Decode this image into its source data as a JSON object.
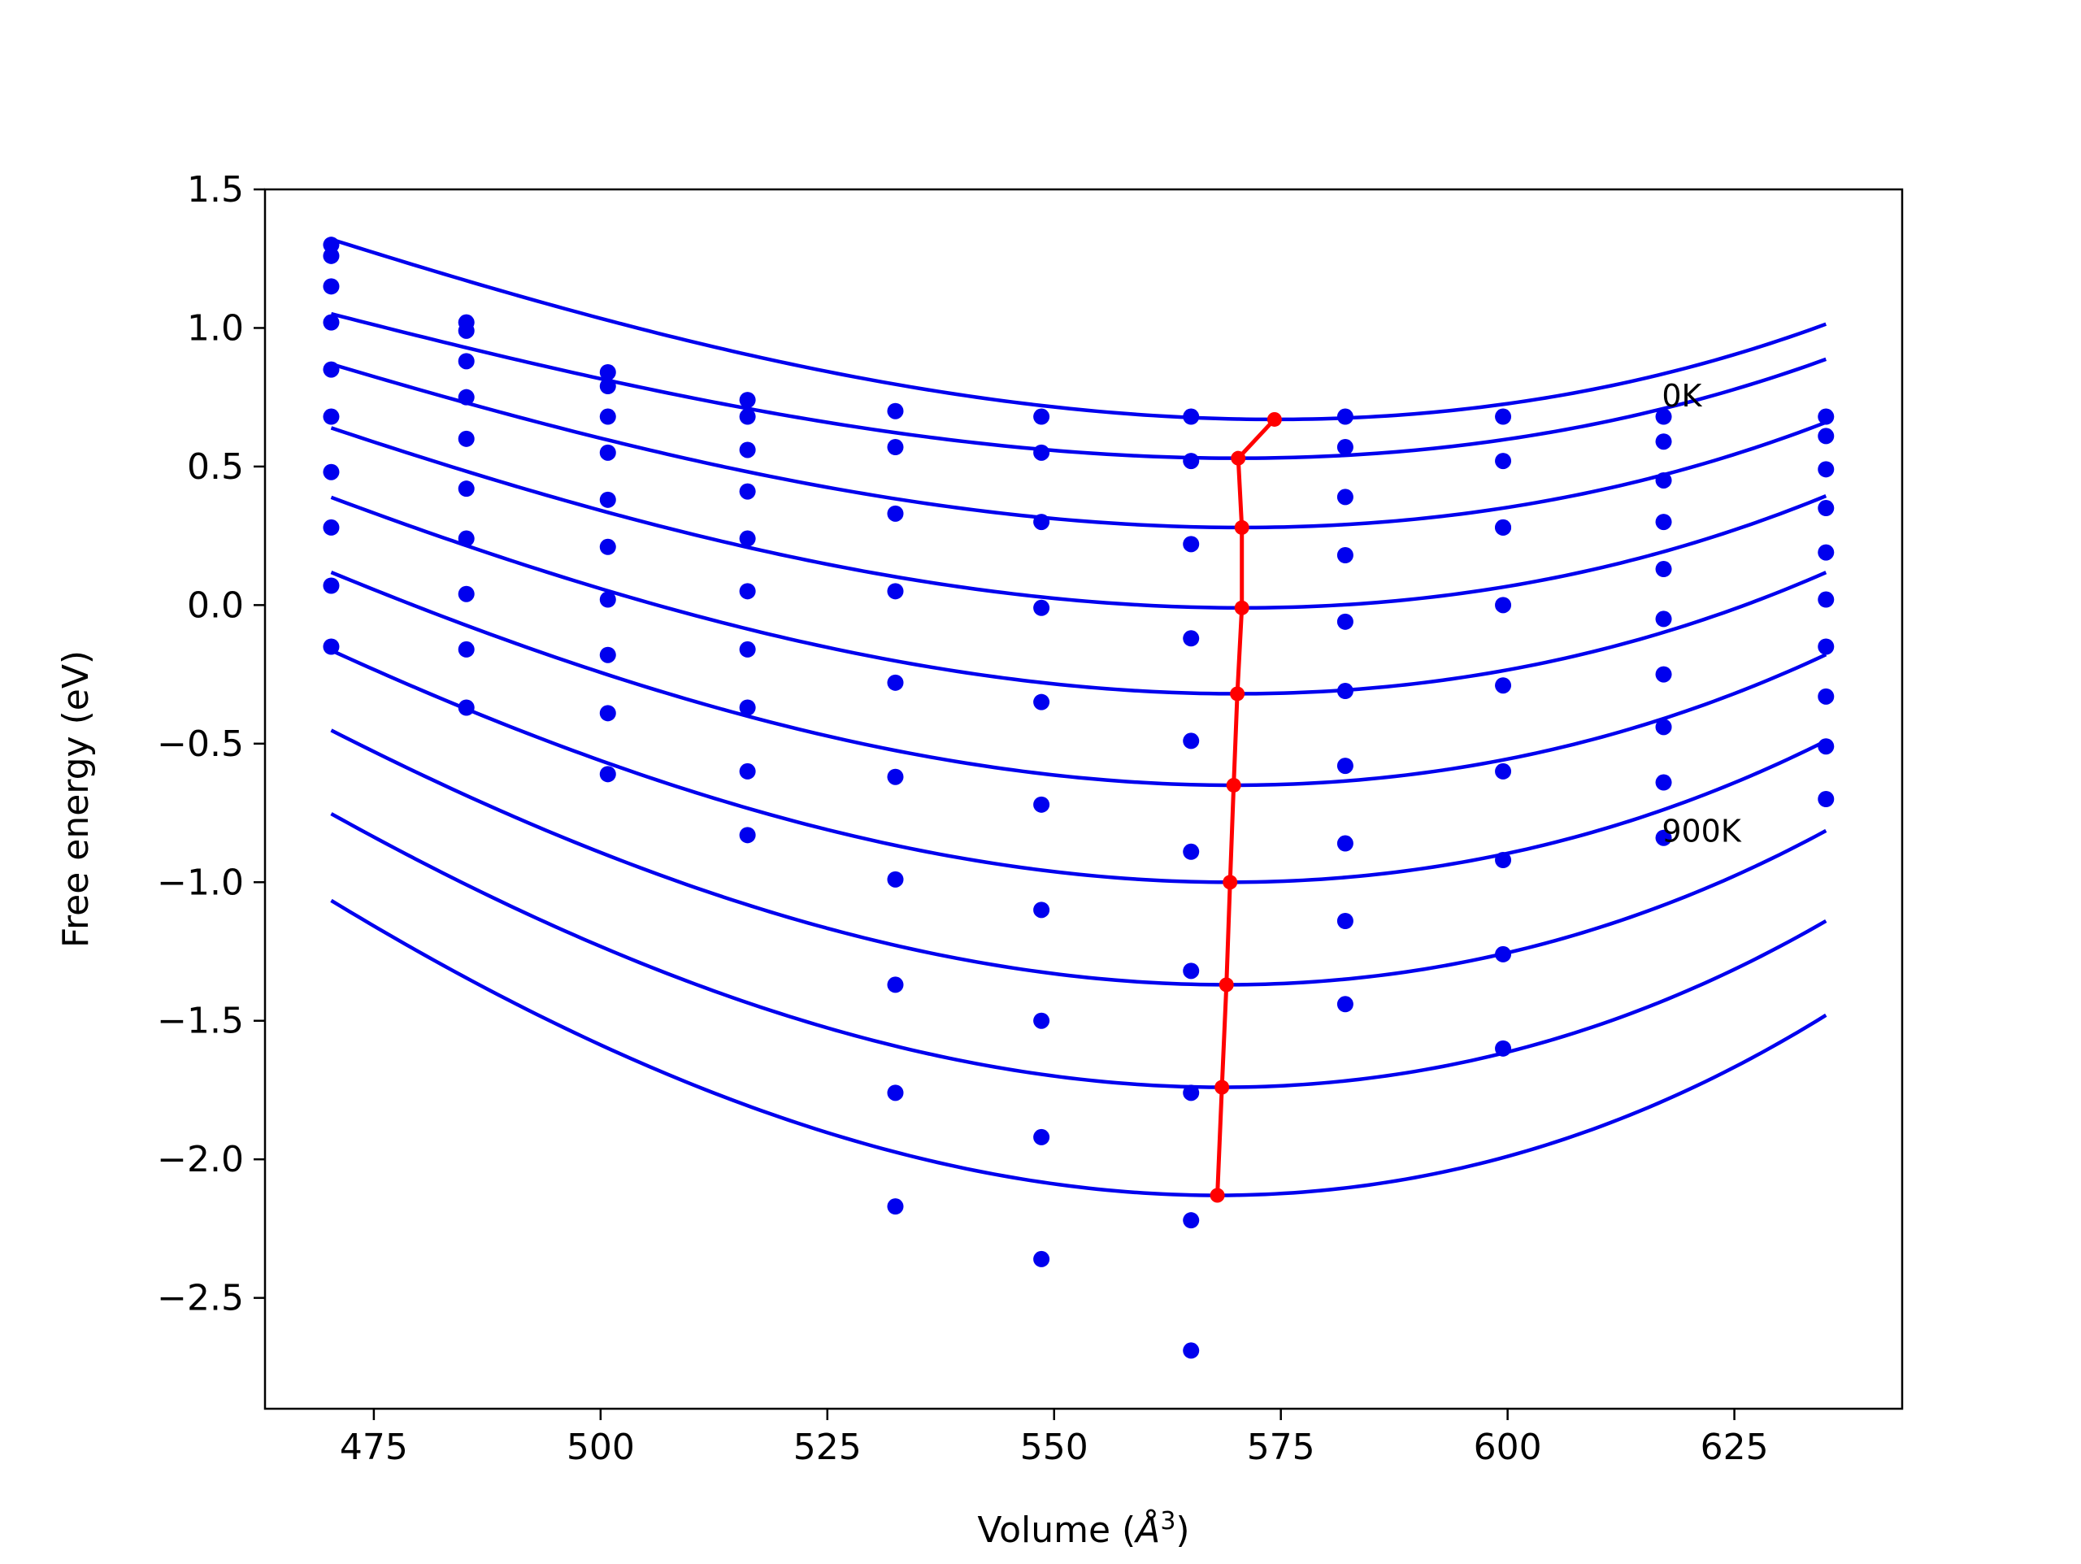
{
  "chart_data": {
    "type": "line",
    "xlabel": "Volume",
    "xlabel_unit_base": "Å",
    "xlabel_unit_exp": "3",
    "ylabel": "Free energy (eV)",
    "xlim": [
      463,
      643.5
    ],
    "ylim": [
      -2.9,
      1.5
    ],
    "x_ticks": [
      475,
      500,
      525,
      550,
      575,
      600,
      625
    ],
    "x_tick_labels": [
      "475",
      "500",
      "525",
      "550",
      "575",
      "600",
      "625"
    ],
    "y_ticks": [
      1.5,
      1.0,
      0.5,
      0.0,
      -0.5,
      -1.0,
      -1.5,
      -2.0,
      -2.5
    ],
    "y_tick_labels": [
      "1.5",
      "1.0",
      "0.5",
      "0.0",
      "−0.5",
      "−1.0",
      "−1.5",
      "−2.0",
      "−2.5"
    ],
    "grid": false,
    "colors": {
      "fits": "#0000ee",
      "points": "#0000ee",
      "minimum": "#ff0000",
      "axes": "#000000"
    },
    "annotations": [
      {
        "text": "0K",
        "x": 617,
        "y": 0.74
      },
      {
        "text": "900K",
        "x": 617,
        "y": -0.83
      }
    ],
    "volumes": [
      470.3,
      485.2,
      500.8,
      516.2,
      532.5,
      548.6,
      565.1,
      582.1,
      599.5,
      617.2,
      635.1
    ],
    "series": [
      {
        "temperature_index": 0,
        "points": [
          1.3,
          1.02,
          0.84,
          0.74,
          0.7,
          0.68,
          0.68,
          0.68,
          0.68,
          0.68,
          0.68
        ],
        "fit": {
          "vmin": 574.3,
          "fmin": 0.67,
          "a": 8.09e-05,
          "b": 2e-07
        }
      },
      {
        "temperature_index": 1,
        "points": [
          1.26,
          0.99,
          0.79,
          0.68,
          0.57,
          0.55,
          0.52,
          0.57,
          0.52,
          0.59,
          0.61
        ],
        "fit": {
          "vmin": 570.3,
          "fmin": 0.53,
          "a": 7.21e-05,
          "b": 2e-07
        }
      },
      {
        "temperature_index": 2,
        "points": [
          1.15,
          0.88,
          0.68,
          0.56,
          0.33,
          0.3,
          0.22,
          0.39,
          0.28,
          0.45,
          0.49
        ],
        "fit": {
          "vmin": 570.7,
          "fmin": 0.28,
          "a": 7.86e-05,
          "b": 2e-07
        }
      },
      {
        "temperature_index": 3,
        "points": [
          1.02,
          0.75,
          0.55,
          0.41,
          0.05,
          -0.01,
          -0.12,
          0.18,
          0.28,
          0.3,
          0.35
        ],
        "fit": {
          "vmin": 570.7,
          "fmin": -0.01,
          "a": 8.45e-05,
          "b": 2e-07
        }
      },
      {
        "temperature_index": 4,
        "points": [
          0.85,
          0.6,
          0.38,
          0.24,
          -0.28,
          -0.35,
          -0.49,
          -0.06,
          0.0,
          0.13,
          0.19
        ],
        "fit": {
          "vmin": 570.2,
          "fmin": -0.32,
          "a": 9.1e-05,
          "b": 2e-07
        }
      },
      {
        "temperature_index": 5,
        "points": [
          0.68,
          0.42,
          0.21,
          0.05,
          -0.62,
          -0.72,
          -0.89,
          -0.31,
          -0.29,
          -0.05,
          0.02
        ],
        "fit": {
          "vmin": 569.8,
          "fmin": -0.65,
          "a": 9.75e-05,
          "b": 2e-07
        }
      },
      {
        "temperature_index": 6,
        "points": [
          0.48,
          0.24,
          0.02,
          -0.16,
          -0.99,
          -1.1,
          -1.32,
          -0.58,
          -0.6,
          -0.25,
          -0.15
        ],
        "fit": {
          "vmin": 569.4,
          "fmin": -1.0,
          "a": 0.000105,
          "b": 2e-07
        }
      },
      {
        "temperature_index": 7,
        "points": [
          0.28,
          0.04,
          -0.18,
          -0.37,
          -1.37,
          -1.5,
          -1.76,
          -0.86,
          -0.92,
          -0.44,
          -0.33
        ],
        "fit": {
          "vmin": 569.0,
          "fmin": -1.37,
          "a": 0.000114,
          "b": 2e-07
        }
      },
      {
        "temperature_index": 8,
        "points": [
          0.07,
          -0.16,
          -0.39,
          -0.6,
          -1.76,
          -1.92,
          -2.22,
          -1.14,
          -1.26,
          -0.64,
          -0.51
        ],
        "fit": {
          "vmin": 568.5,
          "fmin": -1.74,
          "a": 0.000122,
          "b": 2e-07
        }
      },
      {
        "temperature_index": 9,
        "points": [
          -0.15,
          -0.37,
          -0.61,
          -0.83,
          -2.17,
          -2.36,
          -2.69,
          -1.44,
          -1.6,
          -0.84,
          -0.7
        ],
        "fit": {
          "vmin": 568.0,
          "fmin": -2.13,
          "a": 0.000131,
          "b": 2e-07
        }
      }
    ],
    "minimum_path": {
      "x": [
        574.3,
        570.3,
        570.7,
        570.7,
        570.2,
        569.8,
        569.4,
        569.0,
        568.5,
        568.0
      ],
      "y": [
        0.67,
        0.53,
        0.28,
        -0.01,
        -0.32,
        -0.65,
        -1.0,
        -1.37,
        -1.74,
        -2.13
      ]
    }
  }
}
